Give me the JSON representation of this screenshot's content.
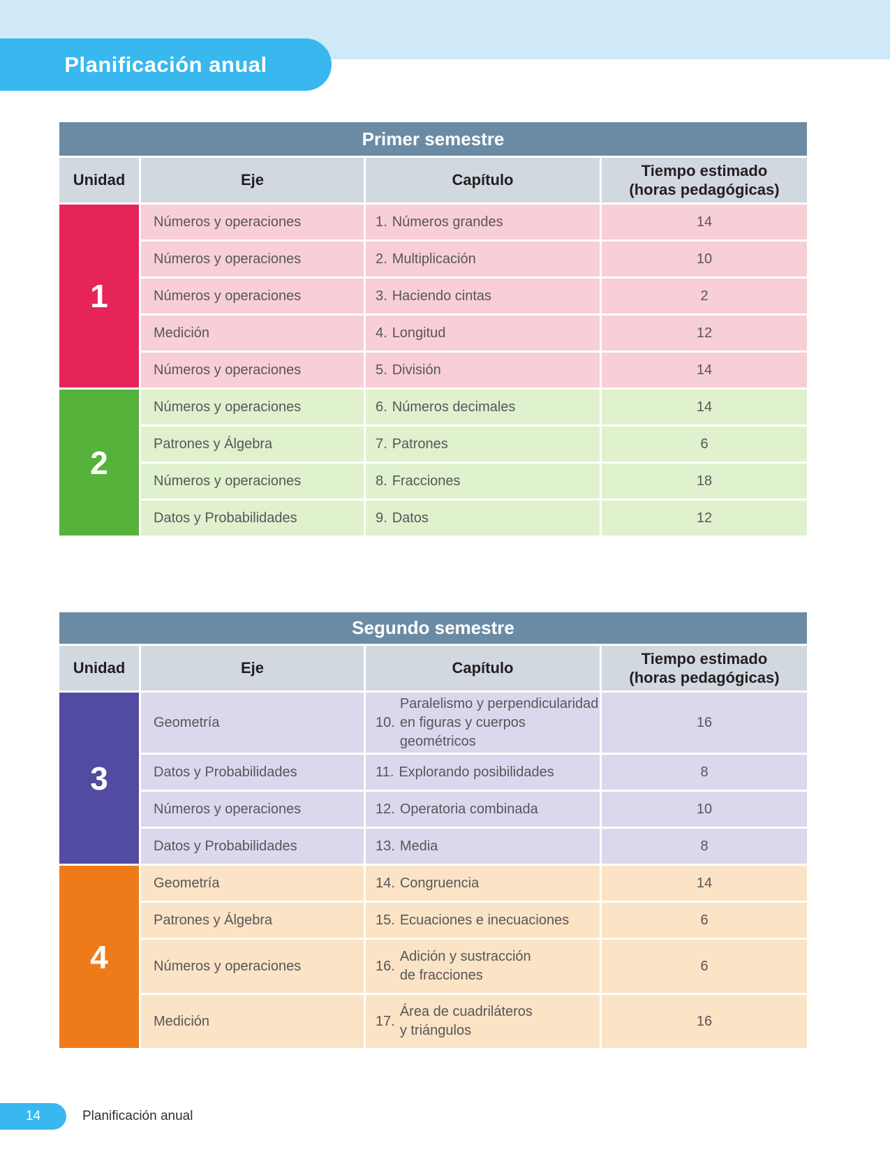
{
  "header": {
    "title": "Planificación anual"
  },
  "columns": {
    "unidad": "Unidad",
    "eje": "Eje",
    "capitulo": "Capítulo",
    "tiempo_line1": "Tiempo estimado",
    "tiempo_line2": "(horas pedagógicas)"
  },
  "tables": [
    {
      "title": "Primer semestre",
      "units": [
        {
          "number": "1",
          "rows": [
            {
              "eje": "Números y operaciones",
              "cap_num": "1.",
              "cap_text": "Números grandes",
              "horas": "14"
            },
            {
              "eje": "Números y operaciones",
              "cap_num": "2.",
              "cap_text": "Multiplicación",
              "horas": "10"
            },
            {
              "eje": "Números y operaciones",
              "cap_num": "3.",
              "cap_text": "Haciendo cintas",
              "horas": "2"
            },
            {
              "eje": "Medición",
              "cap_num": "4.",
              "cap_text": "Longitud",
              "horas": "12"
            },
            {
              "eje": "Números y operaciones",
              "cap_num": "5.",
              "cap_text": "División",
              "horas": "14"
            }
          ]
        },
        {
          "number": "2",
          "rows": [
            {
              "eje": "Números y operaciones",
              "cap_num": "6.",
              "cap_text": "Números decimales",
              "horas": "14"
            },
            {
              "eje": "Patrones y Álgebra",
              "cap_num": "7.",
              "cap_text": "Patrones",
              "horas": "6"
            },
            {
              "eje": "Números y operaciones",
              "cap_num": "8.",
              "cap_text": "Fracciones",
              "horas": "18"
            },
            {
              "eje": "Datos y Probabilidades",
              "cap_num": "9.",
              "cap_text": "Datos",
              "horas": "12"
            }
          ]
        }
      ]
    },
    {
      "title": "Segundo semestre",
      "units": [
        {
          "number": "3",
          "rows": [
            {
              "eje": "Geometría",
              "cap_num": "10.",
              "cap_text": "Paralelismo y perpendicularidad\nen figuras y cuerpos geométricos",
              "horas": "16"
            },
            {
              "eje": "Datos y Probabilidades",
              "cap_num": "11.",
              "cap_text": "Explorando posibilidades",
              "horas": "8"
            },
            {
              "eje": "Números y operaciones",
              "cap_num": "12.",
              "cap_text": "Operatoria combinada",
              "horas": "10"
            },
            {
              "eje": "Datos y Probabilidades",
              "cap_num": "13.",
              "cap_text": "Media",
              "horas": "8"
            }
          ]
        },
        {
          "number": "4",
          "rows": [
            {
              "eje": "Geometría",
              "cap_num": "14.",
              "cap_text": "Congruencia",
              "horas": "14"
            },
            {
              "eje": "Patrones y Álgebra",
              "cap_num": "15.",
              "cap_text": "Ecuaciones e inecuaciones",
              "horas": "6"
            },
            {
              "eje": "Números y operaciones",
              "cap_num": "16.",
              "cap_text": "Adición y sustracción\nde fracciones",
              "horas": "6"
            },
            {
              "eje": "Medición",
              "cap_num": "17.",
              "cap_text": "Área de cuadriláteros\ny triángulos",
              "horas": "16"
            }
          ]
        }
      ]
    }
  ],
  "footer": {
    "page_number": "14",
    "label": "Planificación anual"
  },
  "colors": {
    "top_band": "#cfe9f8",
    "title_pill": "#38b8ee",
    "semester_band": "#6b8ba4",
    "column_header_bg": "#d2d8e0",
    "unit1": "#e72459",
    "unit1_row": "#f8ced7",
    "unit2": "#55b23b",
    "unit2_row": "#e0f1cd",
    "unit3": "#524ba2",
    "unit3_row": "#dbd7ec",
    "unit4": "#ef7a1a",
    "unit4_row": "#fbe3c5"
  }
}
